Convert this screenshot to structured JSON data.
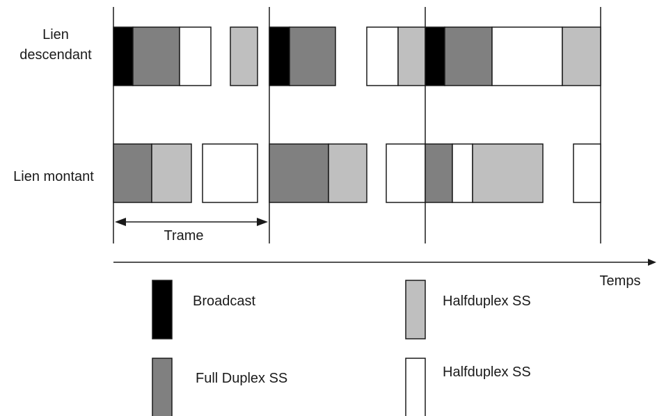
{
  "rows": {
    "downlink": {
      "label_lines": [
        "Lien",
        "descendant"
      ]
    },
    "uplink": {
      "label_lines": [
        "Lien montant"
      ]
    }
  },
  "frame_label": "Trame",
  "time_label": "Temps",
  "legend": [
    {
      "label": "Broadcast",
      "color": "#000000"
    },
    {
      "label": "Halfduplex SS",
      "color": "#bfbfbf"
    },
    {
      "label": "Full Duplex SS",
      "color": "#808080"
    },
    {
      "label": "Halfduplex SS",
      "color": "#ffffff"
    }
  ],
  "colors": {
    "broadcast": "#000000",
    "full_duplex": "#808080",
    "half_duplex_light": "#bfbfbf",
    "half_duplex_white": "#ffffff",
    "stroke": "#1a1a1a"
  }
}
